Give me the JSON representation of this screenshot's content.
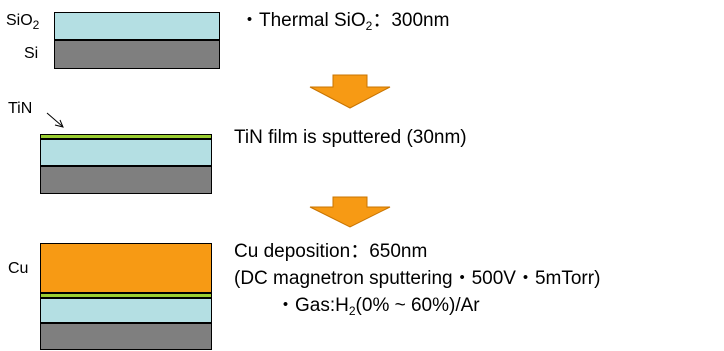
{
  "colors": {
    "oxide": "#b4dfe3",
    "silicon": "#7f7f7f",
    "tin": "#9acd32",
    "copper": "#f79a14",
    "arrow": "#f79a14"
  },
  "step1": {
    "label_sio2_main": "SiO",
    "label_sio2_sub": "2",
    "label_si": "Si",
    "desc_prefix": "・Thermal SiO",
    "desc_sub": "2",
    "desc_suffix": "：300nm"
  },
  "step2": {
    "label_tin": "TiN",
    "desc": "TiN film is sputtered (30nm)"
  },
  "step3": {
    "label_cu": "Cu",
    "line1": "Cu deposition：650nm",
    "line2": "(DC magnetron sputtering・500V・5mTorr)",
    "line3_prefix": "・Gas:H",
    "line3_sub": "2",
    "line3_suffix": "(0% ~ 60%)/Ar"
  },
  "arrows": [
    "down-arrow",
    "down-arrow"
  ]
}
